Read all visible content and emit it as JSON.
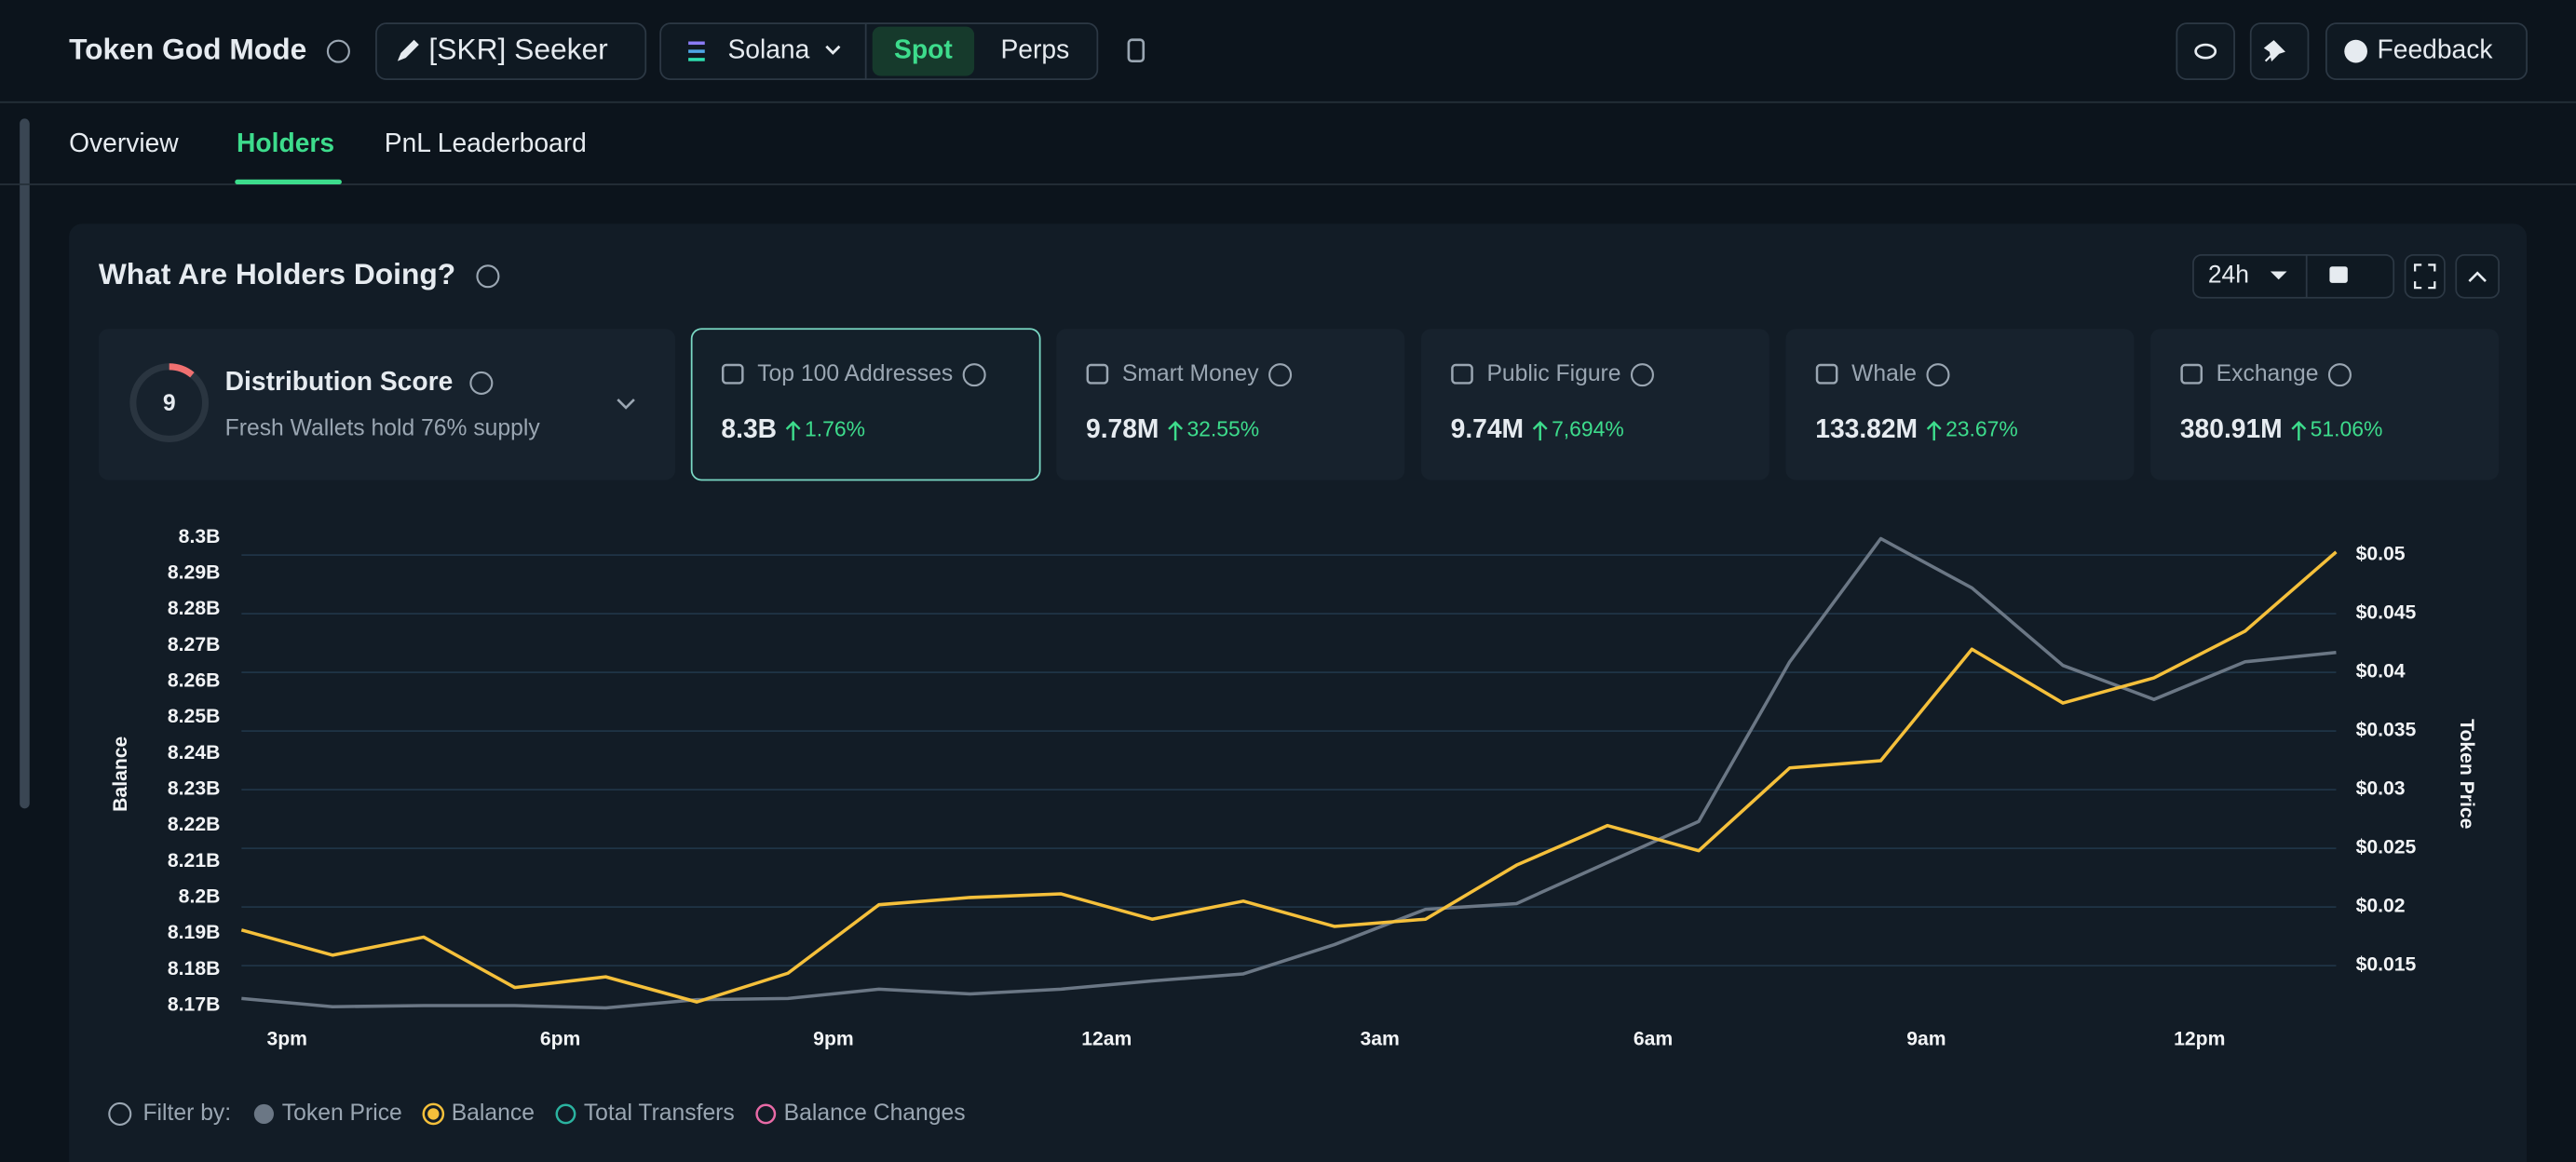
{
  "header": {
    "title": "Token God Mode",
    "token": "[SKR] Seeker",
    "chain": "Solana",
    "modes": [
      "Spot",
      "Perps"
    ],
    "feedback": "Feedback"
  },
  "tabs": [
    "Overview",
    "Holders",
    "PnL Leaderboard"
  ],
  "panel": {
    "title": "What Are Holders Doing?",
    "period": "24h"
  },
  "distribution": {
    "score": 9,
    "title": "Distribution Score",
    "subtitle": "Fresh Wallets hold 76% supply"
  },
  "cards": [
    {
      "label": "Top 100 Addresses",
      "value": "8.3B",
      "change": "1.76%"
    },
    {
      "label": "Smart Money",
      "value": "9.78M",
      "change": "32.55%"
    },
    {
      "label": "Public Figure",
      "value": "9.74M",
      "change": "7,694%"
    },
    {
      "label": "Whale",
      "value": "133.82M",
      "change": "23.67%"
    },
    {
      "label": "Exchange",
      "value": "380.91M",
      "change": "51.06%"
    }
  ],
  "filters": {
    "label": "Filter by:",
    "items": [
      "Total Transfers",
      "Balance Changes"
    ]
  },
  "chart_data": {
    "type": "line",
    "y_label": "Balance",
    "y2_label": "Token Price",
    "categories": [
      null,
      "3pm",
      null,
      null,
      "6pm",
      null,
      null,
      "9pm",
      null,
      null,
      "12am",
      null,
      null,
      "3am",
      null,
      null,
      "6am",
      null,
      null,
      "9am",
      null,
      null,
      "12pm",
      null
    ],
    "series": [
      {
        "name": "Balance",
        "color": "#f5c03b",
        "values": [
          8.191,
          8.184,
          8.189,
          8.175,
          8.178,
          8.171,
          8.179,
          8.198,
          8.2,
          8.201,
          8.194,
          8.199,
          8.192,
          8.194,
          8.209,
          8.22,
          8.213,
          8.236,
          8.238,
          8.269,
          8.254,
          8.261,
          8.274,
          8.296
        ]
      },
      {
        "name": "Token Price",
        "color": "#6b7785",
        "axis": "y2",
        "values": [
          0.0122,
          0.0115,
          0.0116,
          0.0116,
          0.0114,
          0.0121,
          0.0122,
          0.013,
          0.0126,
          0.013,
          0.0137,
          0.0143,
          0.0168,
          0.0198,
          0.0203,
          0.0238,
          0.0273,
          0.0409,
          0.0514,
          0.0472,
          0.0406,
          0.0377,
          0.0409,
          0.0417
        ]
      }
    ],
    "ylim": [
      8.17,
      8.3
    ],
    "yticks": [
      {
        "value": 8.17,
        "label": "8.17B"
      },
      {
        "value": 8.18,
        "label": "8.18B"
      },
      {
        "value": 8.19,
        "label": "8.19B"
      },
      {
        "value": 8.2,
        "label": "8.2B"
      },
      {
        "value": 8.21,
        "label": "8.21B"
      },
      {
        "value": 8.22,
        "label": "8.22B"
      },
      {
        "value": 8.23,
        "label": "8.23B"
      },
      {
        "value": 8.24,
        "label": "8.24B"
      },
      {
        "value": 8.25,
        "label": "8.25B"
      },
      {
        "value": 8.26,
        "label": "8.26B"
      },
      {
        "value": 8.27,
        "label": "8.27B"
      },
      {
        "value": 8.28,
        "label": "8.28B"
      },
      {
        "value": 8.29,
        "label": "8.29B"
      },
      {
        "value": 8.3,
        "label": "8.3B"
      }
    ],
    "y2lim": [
      0.0116,
      0.0515
    ],
    "y2ticks": [
      {
        "value": 0.015,
        "label": "$0.015"
      },
      {
        "value": 0.02,
        "label": "$0.02"
      },
      {
        "value": 0.025,
        "label": "$0.025"
      },
      {
        "value": 0.03,
        "label": "$0.03"
      },
      {
        "value": 0.035,
        "label": "$0.035"
      },
      {
        "value": 0.04,
        "label": "$0.04"
      },
      {
        "value": 0.045,
        "label": "$0.045"
      },
      {
        "value": 0.05,
        "label": "$0.05"
      }
    ],
    "grid": true
  }
}
